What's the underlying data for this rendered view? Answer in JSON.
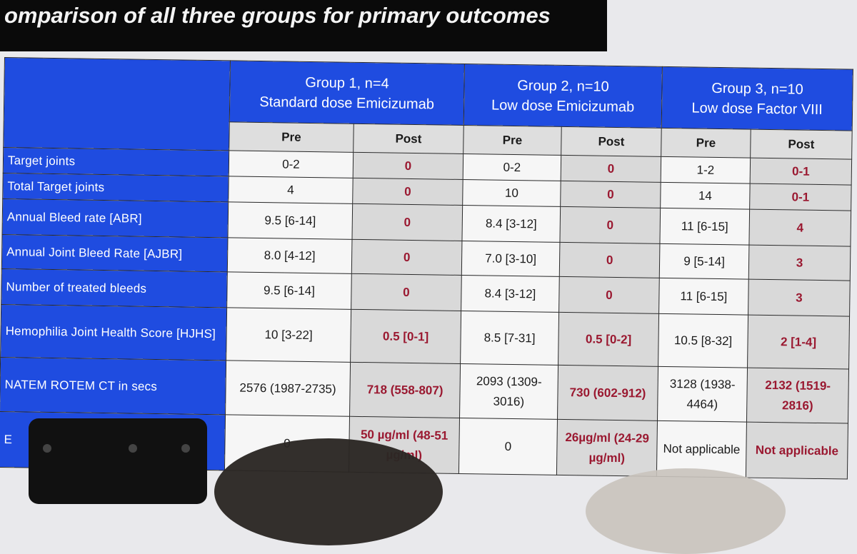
{
  "title": "omparison of all three groups for primary outcomes",
  "groups": [
    {
      "line1": "Group 1, n=4",
      "line2": "Standard dose Emicizumab"
    },
    {
      "line1": "Group 2, n=10",
      "line2": "Low dose Emicizumab"
    },
    {
      "line1": "Group 3, n=10",
      "line2": "Low dose Factor VIII"
    }
  ],
  "subheaders": {
    "pre": "Pre",
    "post": "Post"
  },
  "rows": [
    {
      "label": "Target joints",
      "values": [
        "0-2",
        "0",
        "0-2",
        "0",
        "1-2",
        "0-1"
      ]
    },
    {
      "label": "Total Target joints",
      "values": [
        "4",
        "0",
        "10",
        "0",
        "14",
        "0-1"
      ]
    },
    {
      "label": "Annual Bleed rate [ABR]",
      "values": [
        "9.5 [6-14]",
        "0",
        "8.4 [3-12]",
        "0",
        "11 [6-15]",
        "4"
      ]
    },
    {
      "label": "Annual Joint Bleed Rate [AJBR]",
      "values": [
        "8.0 [4-12]",
        "0",
        "7.0 [3-10]",
        "0",
        "9 [5-14]",
        "3"
      ]
    },
    {
      "label": "Number of treated bleeds",
      "values": [
        "9.5 [6-14]",
        "0",
        "8.4 [3-12]",
        "0",
        "11 [6-15]",
        "3"
      ]
    },
    {
      "label": "Hemophilia Joint Health Score [HJHS]",
      "values": [
        "10 [3-22]",
        "0.5 [0-1]",
        "8.5 [7-31]",
        "0.5 [0-2]",
        "10.5 [8-32]",
        "2 [1-4]"
      ]
    },
    {
      "label": "NATEM ROTEM CT in secs",
      "values": [
        "2576 (1987-2735)",
        "718 (558-807)",
        "2093 (1309-3016)",
        "730 (602-912)",
        "3128 (1938-4464)",
        "2132 (1519-2816)"
      ]
    },
    {
      "label": "E",
      "values": [
        "0",
        "50 µg/ml (48-51 µg/ml)",
        "0",
        "26µg/ml (24-29 µg/ml)",
        "Not applicable",
        "Not applicable"
      ]
    }
  ]
}
